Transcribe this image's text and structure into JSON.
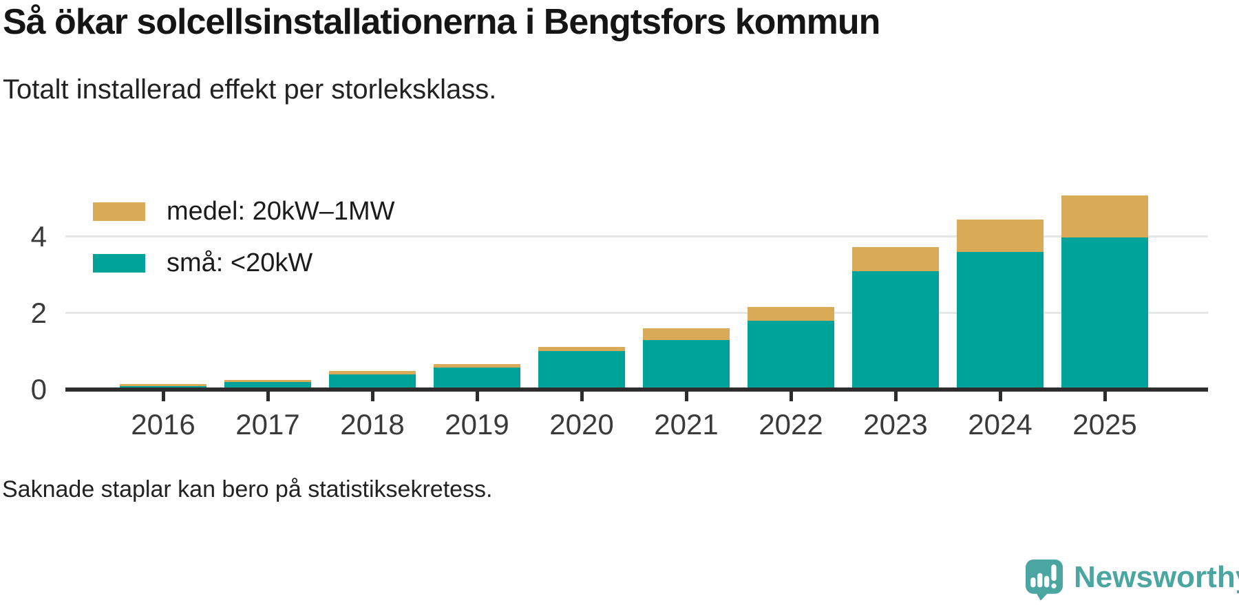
{
  "header": {
    "title": "Så ökar solcellsinstallationerna i Bengtsfors kommun",
    "subtitle": "Totalt installerad effekt per storleksklass."
  },
  "footer": {
    "note": "Saknade staplar kan bero på statistiksekretess."
  },
  "brand": {
    "name": "Newsworthy",
    "color": "#4ba5a0",
    "icon": "newsworthy-speech-bubble-chart-icon"
  },
  "chart_data": {
    "type": "bar",
    "stacked": true,
    "title": "Så ökar solcellsinstallationerna i Bengtsfors kommun",
    "subtitle": "Totalt installerad effekt per storleksklass.",
    "footnote": "Saknade staplar kan bero på statistiksekretess.",
    "categories": [
      "2016",
      "2017",
      "2018",
      "2019",
      "2020",
      "2021",
      "2022",
      "2023",
      "2024",
      "2025"
    ],
    "series": [
      {
        "name": "medel: 20kW–1MW",
        "color": "#d9ab59",
        "values": [
          0.05,
          0.06,
          0.09,
          0.09,
          0.11,
          0.31,
          0.35,
          0.63,
          0.85,
          1.11
        ]
      },
      {
        "name": "små: <20kW",
        "color": "#00a39a",
        "values": [
          0.09,
          0.2,
          0.4,
          0.58,
          1.0,
          1.29,
          1.8,
          3.09,
          3.6,
          3.97
        ]
      }
    ],
    "xlabel": "",
    "ylabel": "",
    "yticks": [
      0,
      2,
      4
    ],
    "ylim": [
      0,
      5.3
    ],
    "grid": "horizontal",
    "gridline_color": "#e6e6e6",
    "axis_color": "#2d2d2d",
    "legend_position": "top-left",
    "legend_order_top_to_bottom": [
      "medel: 20kW–1MW",
      "små: <20kW"
    ],
    "stack_order_bottom_to_top": [
      "små: <20kW",
      "medel: 20kW–1MW"
    ]
  }
}
